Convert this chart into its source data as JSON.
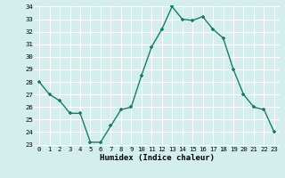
{
  "x": [
    0,
    1,
    2,
    3,
    4,
    5,
    6,
    7,
    8,
    9,
    10,
    11,
    12,
    13,
    14,
    15,
    16,
    17,
    18,
    19,
    20,
    21,
    22,
    23
  ],
  "y": [
    28.0,
    27.0,
    26.5,
    25.5,
    25.5,
    23.2,
    23.2,
    24.5,
    25.8,
    26.0,
    28.5,
    30.8,
    32.2,
    34.0,
    33.0,
    32.9,
    33.2,
    32.2,
    31.5,
    29.0,
    27.0,
    26.0,
    25.8,
    24.0
  ],
  "line_color": "#1a7a6e",
  "marker": "+",
  "xlabel": "Humidex (Indice chaleur)",
  "ylim": [
    23,
    34
  ],
  "xlim": [
    -0.5,
    23.5
  ],
  "yticks": [
    23,
    24,
    25,
    26,
    27,
    28,
    29,
    30,
    31,
    32,
    33,
    34
  ],
  "xtick_labels": [
    "0",
    "1",
    "2",
    "3",
    "4",
    "5",
    "6",
    "7",
    "8",
    "9",
    "10",
    "11",
    "12",
    "13",
    "14",
    "15",
    "16",
    "17",
    "18",
    "19",
    "20",
    "21",
    "22",
    "23"
  ],
  "bg_color": "#d4eeed",
  "grid_color": "#ffffff"
}
